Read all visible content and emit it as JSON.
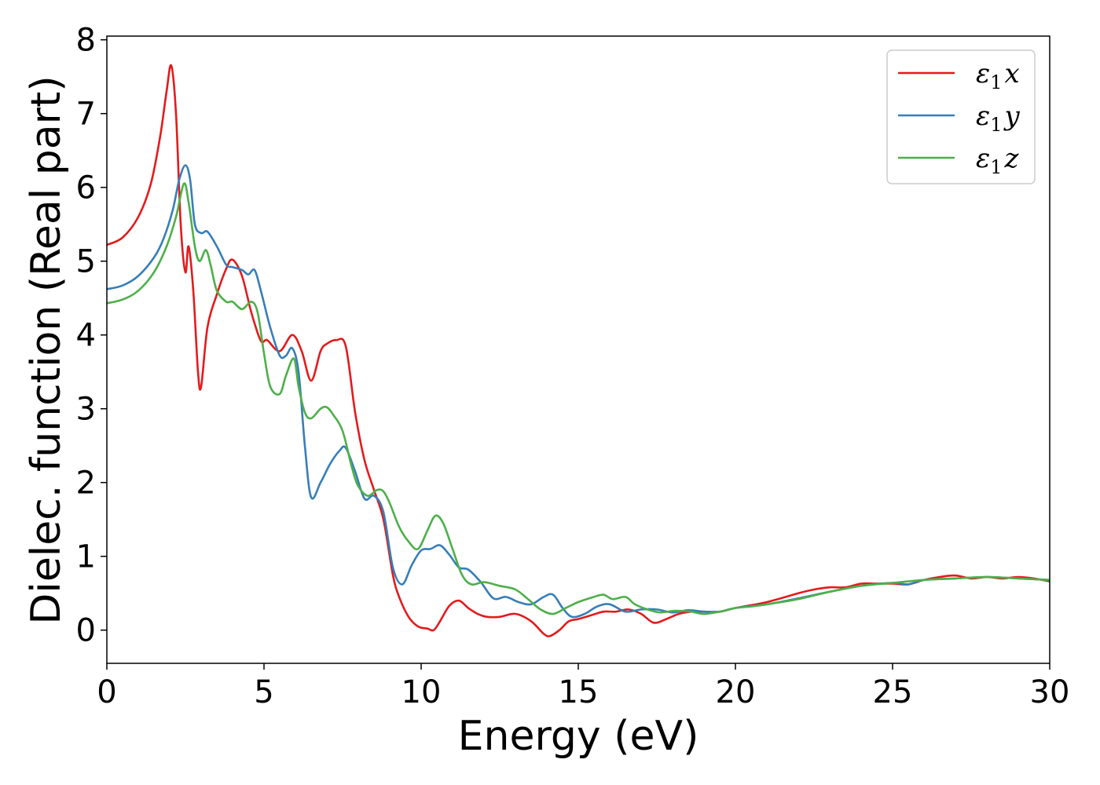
{
  "chart_data": {
    "type": "line",
    "xlabel": "Energy (eV)",
    "ylabel": "Dielec. function (Real part)",
    "xlim": [
      0,
      30
    ],
    "ylim": [
      -0.45,
      8.05
    ],
    "xticks": [
      0,
      5,
      10,
      15,
      20,
      25,
      30
    ],
    "yticks": [
      0,
      1,
      2,
      3,
      4,
      5,
      6,
      7,
      8
    ],
    "xtick_labels": [
      "0",
      "5",
      "10",
      "15",
      "20",
      "25",
      "30"
    ],
    "ytick_labels": [
      "0",
      "1",
      "2",
      "3",
      "4",
      "5",
      "6",
      "7",
      "8"
    ],
    "grid": false,
    "legend_position": "top-right",
    "series": [
      {
        "name": "ε₁x",
        "legend_main": "ε",
        "legend_sub": "1",
        "legend_var": "x",
        "color": "#e41a1c",
        "x": [
          0,
          0.5,
          1.0,
          1.4,
          1.7,
          1.9,
          2.05,
          2.2,
          2.35,
          2.5,
          2.6,
          2.75,
          2.9,
          3.0,
          3.2,
          3.5,
          3.8,
          4.0,
          4.3,
          4.6,
          4.9,
          5.1,
          5.5,
          5.9,
          6.2,
          6.5,
          6.8,
          7.0,
          7.3,
          7.6,
          7.9,
          8.2,
          8.5,
          8.8,
          9.1,
          9.3,
          9.6,
          9.9,
          10.2,
          10.4,
          10.6,
          10.9,
          11.2,
          11.5,
          11.8,
          12.1,
          12.5,
          13.0,
          13.5,
          13.9,
          14.1,
          14.4,
          14.7,
          15.0,
          15.4,
          15.8,
          16.2,
          16.6,
          17.0,
          17.4,
          17.8,
          18.2,
          18.6,
          19.0,
          19.5,
          20.0,
          21.0,
          22.0,
          22.5,
          23.0,
          23.5,
          24.0,
          24.5,
          25.0,
          25.5,
          26.0,
          26.5,
          27.0,
          27.5,
          28.0,
          28.5,
          29.0,
          29.5,
          30.0
        ],
        "y": [
          5.22,
          5.32,
          5.6,
          6.05,
          6.7,
          7.3,
          7.65,
          7.0,
          5.5,
          4.85,
          5.2,
          4.6,
          3.5,
          3.3,
          4.1,
          4.55,
          4.9,
          5.02,
          4.8,
          4.3,
          3.92,
          3.93,
          3.78,
          4.0,
          3.78,
          3.38,
          3.78,
          3.88,
          3.93,
          3.85,
          2.95,
          2.3,
          1.9,
          1.5,
          0.75,
          0.45,
          0.18,
          0.05,
          0.02,
          0.0,
          0.12,
          0.33,
          0.4,
          0.3,
          0.22,
          0.18,
          0.18,
          0.22,
          0.12,
          -0.05,
          -0.08,
          0.0,
          0.12,
          0.15,
          0.2,
          0.25,
          0.25,
          0.28,
          0.22,
          0.1,
          0.15,
          0.22,
          0.25,
          0.25,
          0.25,
          0.3,
          0.38,
          0.5,
          0.55,
          0.58,
          0.58,
          0.63,
          0.63,
          0.63,
          0.62,
          0.68,
          0.72,
          0.74,
          0.7,
          0.72,
          0.7,
          0.72,
          0.7,
          0.66
        ]
      },
      {
        "name": "ε₁y",
        "legend_main": "ε",
        "legend_sub": "1",
        "legend_var": "y",
        "color": "#377eb8",
        "x": [
          0,
          0.5,
          1.0,
          1.5,
          1.8,
          2.1,
          2.3,
          2.5,
          2.65,
          2.8,
          3.0,
          3.2,
          3.5,
          3.8,
          4.0,
          4.3,
          4.5,
          4.7,
          4.9,
          5.2,
          5.5,
          5.7,
          5.9,
          6.1,
          6.3,
          6.5,
          6.8,
          7.1,
          7.4,
          7.6,
          7.9,
          8.2,
          8.5,
          8.8,
          9.1,
          9.4,
          9.7,
          10.0,
          10.3,
          10.6,
          10.9,
          11.2,
          11.5,
          11.9,
          12.3,
          12.7,
          13.1,
          13.5,
          13.9,
          14.2,
          14.5,
          14.8,
          15.2,
          15.6,
          16.0,
          16.5,
          17.0,
          17.5,
          18.0,
          18.5,
          19.0,
          19.5,
          20.0,
          21.0,
          22.0,
          23.0,
          24.0,
          25.0,
          25.5,
          26.0,
          27.0,
          28.0,
          29.0,
          30.0
        ],
        "y": [
          4.62,
          4.67,
          4.8,
          5.05,
          5.3,
          5.7,
          6.1,
          6.3,
          6.1,
          5.5,
          5.38,
          5.4,
          5.2,
          4.95,
          4.92,
          4.88,
          4.82,
          4.88,
          4.6,
          4.1,
          3.72,
          3.72,
          3.82,
          3.5,
          2.5,
          1.8,
          2.0,
          2.25,
          2.43,
          2.47,
          2.15,
          1.78,
          1.82,
          1.6,
          0.85,
          0.62,
          0.88,
          1.08,
          1.1,
          1.15,
          1.02,
          0.85,
          0.82,
          0.65,
          0.43,
          0.45,
          0.38,
          0.35,
          0.45,
          0.48,
          0.3,
          0.18,
          0.22,
          0.32,
          0.35,
          0.25,
          0.28,
          0.28,
          0.24,
          0.27,
          0.25,
          0.25,
          0.3,
          0.35,
          0.43,
          0.52,
          0.6,
          0.64,
          0.62,
          0.68,
          0.7,
          0.72,
          0.7,
          0.68
        ]
      },
      {
        "name": "ε₁z",
        "legend_main": "ε",
        "legend_sub": "1",
        "legend_var": "z",
        "color": "#4daf4a",
        "x": [
          0,
          0.5,
          1.0,
          1.5,
          1.9,
          2.2,
          2.45,
          2.6,
          2.8,
          2.95,
          3.15,
          3.3,
          3.5,
          3.8,
          4.0,
          4.3,
          4.6,
          4.8,
          5.0,
          5.2,
          5.5,
          5.7,
          5.95,
          6.1,
          6.3,
          6.5,
          6.8,
          7.0,
          7.2,
          7.5,
          7.8,
          8.0,
          8.3,
          8.6,
          8.8,
          9.0,
          9.3,
          9.6,
          9.9,
          10.2,
          10.45,
          10.7,
          11.0,
          11.3,
          11.6,
          12.0,
          12.5,
          13.0,
          13.4,
          13.8,
          14.2,
          14.6,
          15.0,
          15.5,
          15.8,
          16.1,
          16.5,
          16.8,
          17.2,
          17.6,
          18.0,
          18.3,
          18.6,
          19.0,
          19.5,
          20.0,
          20.5,
          21.0,
          22.0,
          23.0,
          24.0,
          25.0,
          26.0,
          27.0,
          28.0,
          29.0,
          30.0
        ],
        "y": [
          4.43,
          4.48,
          4.6,
          4.85,
          5.2,
          5.6,
          6.05,
          5.8,
          5.2,
          5.0,
          5.15,
          4.95,
          4.6,
          4.45,
          4.45,
          4.35,
          4.45,
          4.3,
          3.75,
          3.3,
          3.2,
          3.45,
          3.68,
          3.3,
          2.95,
          2.87,
          3.0,
          3.02,
          2.92,
          2.7,
          2.2,
          1.95,
          1.82,
          1.9,
          1.88,
          1.72,
          1.4,
          1.2,
          1.1,
          1.35,
          1.55,
          1.45,
          1.1,
          0.75,
          0.62,
          0.65,
          0.6,
          0.55,
          0.42,
          0.28,
          0.22,
          0.3,
          0.38,
          0.45,
          0.48,
          0.42,
          0.45,
          0.35,
          0.28,
          0.24,
          0.26,
          0.26,
          0.25,
          0.22,
          0.25,
          0.3,
          0.32,
          0.35,
          0.42,
          0.52,
          0.6,
          0.64,
          0.68,
          0.7,
          0.72,
          0.7,
          0.68
        ]
      }
    ]
  }
}
